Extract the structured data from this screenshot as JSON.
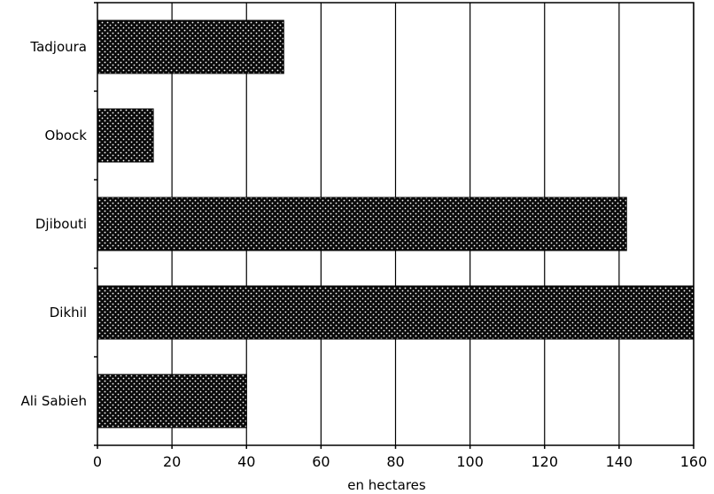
{
  "chart_data": {
    "type": "bar",
    "orientation": "horizontal",
    "categories": [
      "Tadjoura",
      "Obock",
      "Djibouti",
      "Dikhil",
      "Ali Sabieh"
    ],
    "values": [
      50,
      15,
      142,
      160,
      40
    ],
    "xlabel": "en hectares",
    "xlim": [
      0,
      160
    ],
    "xticks": [
      0,
      20,
      40,
      60,
      80,
      100,
      120,
      140,
      160
    ],
    "grid": "vertical",
    "legend": "none",
    "bar_fill": "crosshatch-dark",
    "colors": {
      "bar": "#000000",
      "background": "#ffffff",
      "grid": "#000000"
    }
  }
}
